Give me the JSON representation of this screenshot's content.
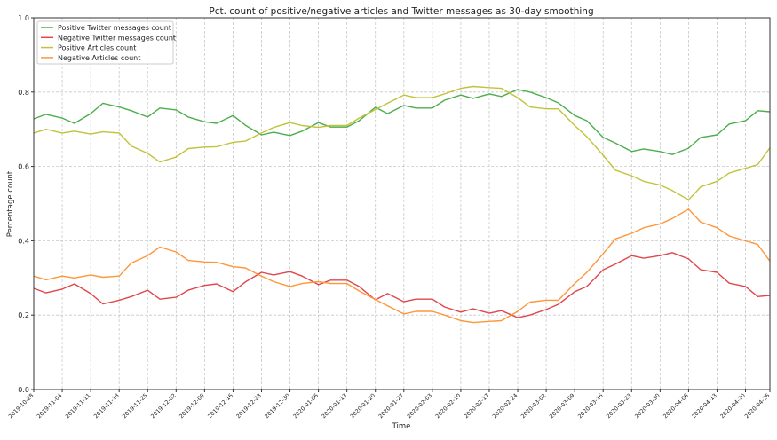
{
  "chart_data": {
    "type": "line",
    "title": "Pct. count of positive/negative articles and Twitter messages as 30-day smoothing",
    "xlabel": "Time",
    "ylabel": "Percentage count",
    "ylim": [
      0.0,
      1.0
    ],
    "xlim": [
      "2019-10-28",
      "2020-04-26"
    ],
    "grid": true,
    "legend_position": "top-left",
    "yticks": [
      "0.0",
      "0.2",
      "0.4",
      "0.6",
      "0.8",
      "1.0"
    ],
    "xticks": [
      "2019-10-28",
      "2019-11-04",
      "2019-11-11",
      "2019-11-18",
      "2019-11-25",
      "2019-12-02",
      "2019-12-09",
      "2019-12-16",
      "2019-12-23",
      "2019-12-30",
      "2020-01-06",
      "2020-01-13",
      "2020-01-20",
      "2020-01-27",
      "2020-02-03",
      "2020-02-10",
      "2020-02-17",
      "2020-02-24",
      "2020-03-02",
      "2020-03-09",
      "2020-03-16",
      "2020-03-23",
      "2020-03-30",
      "2020-04-06",
      "2020-04-13",
      "2020-04-20",
      "2020-04-26"
    ],
    "x": [
      "2019-10-28",
      "2019-10-31",
      "2019-11-04",
      "2019-11-07",
      "2019-11-11",
      "2019-11-14",
      "2019-11-18",
      "2019-11-21",
      "2019-11-25",
      "2019-11-28",
      "2019-12-02",
      "2019-12-05",
      "2019-12-09",
      "2019-12-12",
      "2019-12-16",
      "2019-12-19",
      "2019-12-23",
      "2019-12-26",
      "2019-12-30",
      "2020-01-02",
      "2020-01-06",
      "2020-01-09",
      "2020-01-13",
      "2020-01-16",
      "2020-01-20",
      "2020-01-23",
      "2020-01-27",
      "2020-01-30",
      "2020-02-03",
      "2020-02-06",
      "2020-02-10",
      "2020-02-13",
      "2020-02-17",
      "2020-02-20",
      "2020-02-24",
      "2020-02-27",
      "2020-03-02",
      "2020-03-05",
      "2020-03-09",
      "2020-03-12",
      "2020-03-16",
      "2020-03-19",
      "2020-03-23",
      "2020-03-26",
      "2020-03-30",
      "2020-04-02",
      "2020-04-06",
      "2020-04-09",
      "2020-04-13",
      "2020-04-16",
      "2020-04-20",
      "2020-04-23",
      "2020-04-26"
    ],
    "series": [
      {
        "name": "Positive Twitter messages count",
        "color": "#4cae4c",
        "values": [
          0.728,
          0.74,
          0.73,
          0.716,
          0.742,
          0.77,
          0.76,
          0.75,
          0.733,
          0.757,
          0.752,
          0.733,
          0.72,
          0.716,
          0.737,
          0.711,
          0.685,
          0.692,
          0.683,
          0.695,
          0.718,
          0.706,
          0.706,
          0.723,
          0.759,
          0.742,
          0.764,
          0.757,
          0.757,
          0.778,
          0.792,
          0.783,
          0.795,
          0.788,
          0.807,
          0.8,
          0.785,
          0.771,
          0.737,
          0.723,
          0.678,
          0.663,
          0.64,
          0.647,
          0.64,
          0.632,
          0.649,
          0.678,
          0.685,
          0.714,
          0.723,
          0.75,
          0.747
        ]
      },
      {
        "name": "Negative Twitter messages count",
        "color": "#e0474c",
        "values": [
          0.272,
          0.26,
          0.27,
          0.284,
          0.258,
          0.23,
          0.24,
          0.25,
          0.267,
          0.243,
          0.248,
          0.267,
          0.28,
          0.284,
          0.263,
          0.289,
          0.315,
          0.308,
          0.317,
          0.305,
          0.282,
          0.294,
          0.294,
          0.277,
          0.241,
          0.258,
          0.236,
          0.243,
          0.243,
          0.222,
          0.208,
          0.217,
          0.205,
          0.212,
          0.193,
          0.2,
          0.215,
          0.229,
          0.263,
          0.277,
          0.322,
          0.337,
          0.36,
          0.353,
          0.36,
          0.368,
          0.351,
          0.322,
          0.315,
          0.286,
          0.277,
          0.25,
          0.253
        ]
      },
      {
        "name": "Positive Articles count",
        "color": "#c2c23a",
        "values": [
          0.69,
          0.7,
          0.69,
          0.695,
          0.687,
          0.693,
          0.69,
          0.655,
          0.635,
          0.612,
          0.625,
          0.648,
          0.652,
          0.653,
          0.665,
          0.668,
          0.69,
          0.705,
          0.718,
          0.71,
          0.705,
          0.71,
          0.71,
          0.73,
          0.753,
          0.77,
          0.792,
          0.785,
          0.785,
          0.795,
          0.81,
          0.815,
          0.812,
          0.81,
          0.785,
          0.76,
          0.755,
          0.755,
          0.71,
          0.68,
          0.63,
          0.59,
          0.575,
          0.56,
          0.55,
          0.535,
          0.51,
          0.545,
          0.56,
          0.582,
          0.595,
          0.605,
          0.65
        ]
      },
      {
        "name": "Negative Articles count",
        "color": "#ff9638",
        "values": [
          0.305,
          0.295,
          0.305,
          0.3,
          0.308,
          0.302,
          0.305,
          0.34,
          0.36,
          0.383,
          0.37,
          0.347,
          0.343,
          0.342,
          0.33,
          0.327,
          0.305,
          0.29,
          0.277,
          0.285,
          0.29,
          0.285,
          0.285,
          0.265,
          0.242,
          0.225,
          0.203,
          0.21,
          0.21,
          0.2,
          0.185,
          0.18,
          0.183,
          0.185,
          0.21,
          0.235,
          0.24,
          0.24,
          0.285,
          0.315,
          0.365,
          0.405,
          0.42,
          0.435,
          0.445,
          0.46,
          0.485,
          0.45,
          0.435,
          0.413,
          0.4,
          0.39,
          0.345
        ]
      }
    ]
  }
}
